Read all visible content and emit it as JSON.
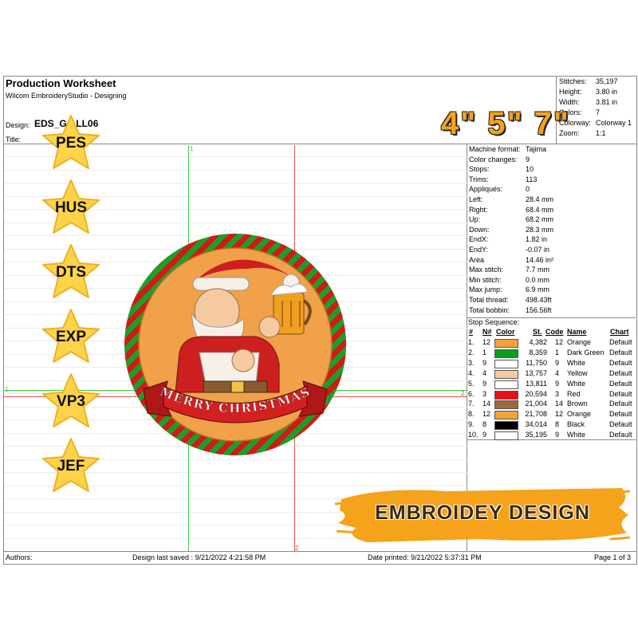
{
  "header": {
    "title": "Production Worksheet",
    "software": "Wilcom EmbroideryStudio - Designing",
    "design_label": "Design:",
    "design_value": "EDS_G   ALL06",
    "title_label": "Title:",
    "stats": [
      {
        "label": "Stitches:",
        "value": "35,197"
      },
      {
        "label": "Height:",
        "value": "3.80 in"
      },
      {
        "label": "Width:",
        "value": "3.81 in"
      },
      {
        "label": "Colors:",
        "value": "7"
      },
      {
        "label": "Colorway:",
        "value": "Colorway 1"
      },
      {
        "label": "Zoom:",
        "value": "1:1"
      }
    ]
  },
  "sizes_banner": "4\"  5\"  7\"",
  "formats": [
    "PES",
    "HUS",
    "DTS",
    "EXP",
    "VP3",
    "JEF"
  ],
  "machine": [
    {
      "label": "Machine format:",
      "value": "Tajima"
    },
    {
      "label": "Color changes:",
      "value": "9"
    },
    {
      "label": "Stops:",
      "value": "10"
    },
    {
      "label": "Trims:",
      "value": "113"
    },
    {
      "label": "Appliqués:",
      "value": "0"
    },
    {
      "label": "Left:",
      "value": "28.4 mm"
    },
    {
      "label": "Right:",
      "value": "68.4 mm"
    },
    {
      "label": "Up:",
      "value": "68.2 mm"
    },
    {
      "label": "Down:",
      "value": "28.3 mm"
    },
    {
      "label": "EndX:",
      "value": "1.82 in"
    },
    {
      "label": "EndY:",
      "value": "-0.07 in"
    },
    {
      "label": "Area",
      "value": "14.46 in²"
    },
    {
      "label": "Max stitch:",
      "value": "7.7 mm"
    },
    {
      "label": "Min stitch:",
      "value": "0.0 mm"
    },
    {
      "label": "Max jump:",
      "value": "6.9 mm"
    },
    {
      "label": "Total thread:",
      "value": "498.43ft"
    },
    {
      "label": "Total bobbin:",
      "value": "156.56ft"
    }
  ],
  "stop_sequence": {
    "title": "Stop Sequence:",
    "headers": [
      "#",
      "N#",
      "Color",
      "St.",
      "Code",
      "Name",
      "Chart"
    ],
    "rows": [
      {
        "i": "1.",
        "n": "12",
        "color": "#f4a23c",
        "st": "4,382",
        "code": "12",
        "name": "Orange",
        "chart": "Default"
      },
      {
        "i": "2.",
        "n": "1",
        "color": "#0aa01e",
        "st": "8,359",
        "code": "1",
        "name": "Dark Green",
        "chart": "Default"
      },
      {
        "i": "3.",
        "n": "9",
        "color": "#ffffff",
        "st": "11,750",
        "code": "9",
        "name": "White",
        "chart": "Default"
      },
      {
        "i": "4.",
        "n": "4",
        "color": "#f6caa0",
        "st": "13,757",
        "code": "4",
        "name": "Yellow",
        "chart": "Default"
      },
      {
        "i": "5.",
        "n": "9",
        "color": "#ffffff",
        "st": "13,811",
        "code": "9",
        "name": "White",
        "chart": "Default"
      },
      {
        "i": "6.",
        "n": "3",
        "color": "#e81010",
        "st": "20,594",
        "code": "3",
        "name": "Red",
        "chart": "Default"
      },
      {
        "i": "7.",
        "n": "14",
        "color": "#9a6a3a",
        "st": "21,004",
        "code": "14",
        "name": "Brown",
        "chart": "Default"
      },
      {
        "i": "8.",
        "n": "12",
        "color": "#f4a23c",
        "st": "21,708",
        "code": "12",
        "name": "Orange",
        "chart": "Default"
      },
      {
        "i": "9.",
        "n": "8",
        "color": "#000000",
        "st": "34,014",
        "code": "8",
        "name": "Black",
        "chart": "Default"
      },
      {
        "i": "10.",
        "n": "9",
        "color": "#ffffff",
        "st": "35,195",
        "code": "9",
        "name": "White",
        "chart": "Default"
      }
    ]
  },
  "ribbon_text": "MERRY CHRISTMAS",
  "badge": "EMBROIDEY DESIGN",
  "guides": {
    "top_1": "1",
    "left_1": "1",
    "right_2": "2",
    "bottom_2": "2"
  },
  "footer": {
    "authors": "Authors:",
    "saved": "Design last saved : 9/21/2022 4:21:58 PM",
    "printed": "Date printed: 9/21/2022 5:37:31 PM",
    "page": "Page 1 of 3"
  },
  "colors": {
    "accent_orange": "#f5a31a",
    "guide_green": "#3ccf3c",
    "guide_red": "#e05050",
    "star_yellow": "#fdd34a"
  }
}
